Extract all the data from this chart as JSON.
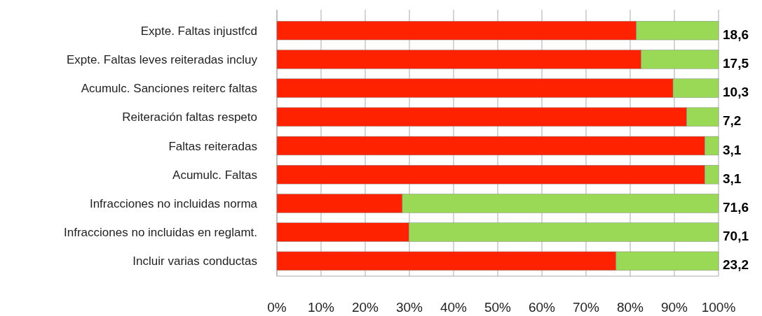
{
  "chart_data": {
    "type": "bar",
    "orientation": "horizontal",
    "stacked": true,
    "categories": [
      "Expte. Faltas injustfcd",
      "Expte. Faltas leves reiteradas incluy",
      "Acumulc. Sanciones reiterc faltas",
      "Reiteración faltas respeto",
      "Faltas reiteradas",
      "Acumulc. Faltas",
      "Infracciones no incluidas norma",
      "Infracciones no incluidas en reglamt.",
      "Incluir varias conductas"
    ],
    "series": [
      {
        "color": "#ff2200",
        "values": [
          81.4,
          82.5,
          89.7,
          92.8,
          96.9,
          96.9,
          28.4,
          29.9,
          76.8
        ]
      },
      {
        "color": "#99d955",
        "values": [
          18.6,
          17.5,
          10.3,
          7.2,
          3.1,
          3.1,
          71.6,
          70.1,
          23.2
        ],
        "value_labels": [
          "18,6",
          "17,5",
          "10,3",
          "7,2",
          "3,1",
          "3,1",
          "71,6",
          "70,1",
          "23,2"
        ]
      }
    ],
    "xlim": [
      0,
      100
    ],
    "xticks": [
      {
        "value": 0,
        "label": "0%"
      },
      {
        "value": 10,
        "label": "10%"
      },
      {
        "value": 20,
        "label": "20%"
      },
      {
        "value": 30,
        "label": "30%"
      },
      {
        "value": 40,
        "label": "40%"
      },
      {
        "value": 50,
        "label": "50%"
      },
      {
        "value": 60,
        "label": "60%"
      },
      {
        "value": 70,
        "label": "70%"
      },
      {
        "value": 80,
        "label": "80%"
      },
      {
        "value": 90,
        "label": "90%"
      },
      {
        "value": 100,
        "label": "100%"
      }
    ],
    "grid": "x"
  }
}
